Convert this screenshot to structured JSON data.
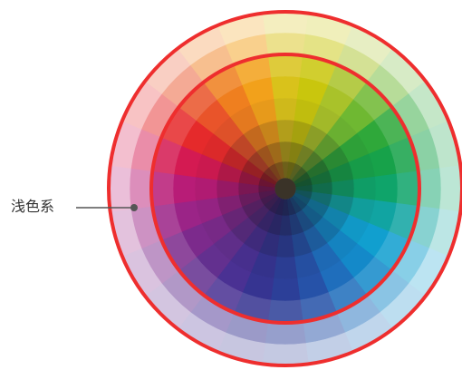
{
  "callout": {
    "label": "浅色系"
  },
  "wheel": {
    "sectors": 24,
    "rings": 8,
    "hues": [
      "#d9c21b",
      "#c9c60d",
      "#a9c22a",
      "#6fb832",
      "#2fa83a",
      "#17a24a",
      "#0fa46a",
      "#11a4a2",
      "#119fcf",
      "#1489c9",
      "#1f6ebc",
      "#2652a8",
      "#2c3f98",
      "#363491",
      "#4a3193",
      "#63308f",
      "#7c2a8c",
      "#9b2487",
      "#b81c77",
      "#d41a52",
      "#e52a2b",
      "#e9542a",
      "#ef7f1f",
      "#f2a11b"
    ],
    "outer_ring_color": "#ee2e2e",
    "inner_ring_color": "#ee2e2e",
    "callout_line_color": "#555555"
  }
}
